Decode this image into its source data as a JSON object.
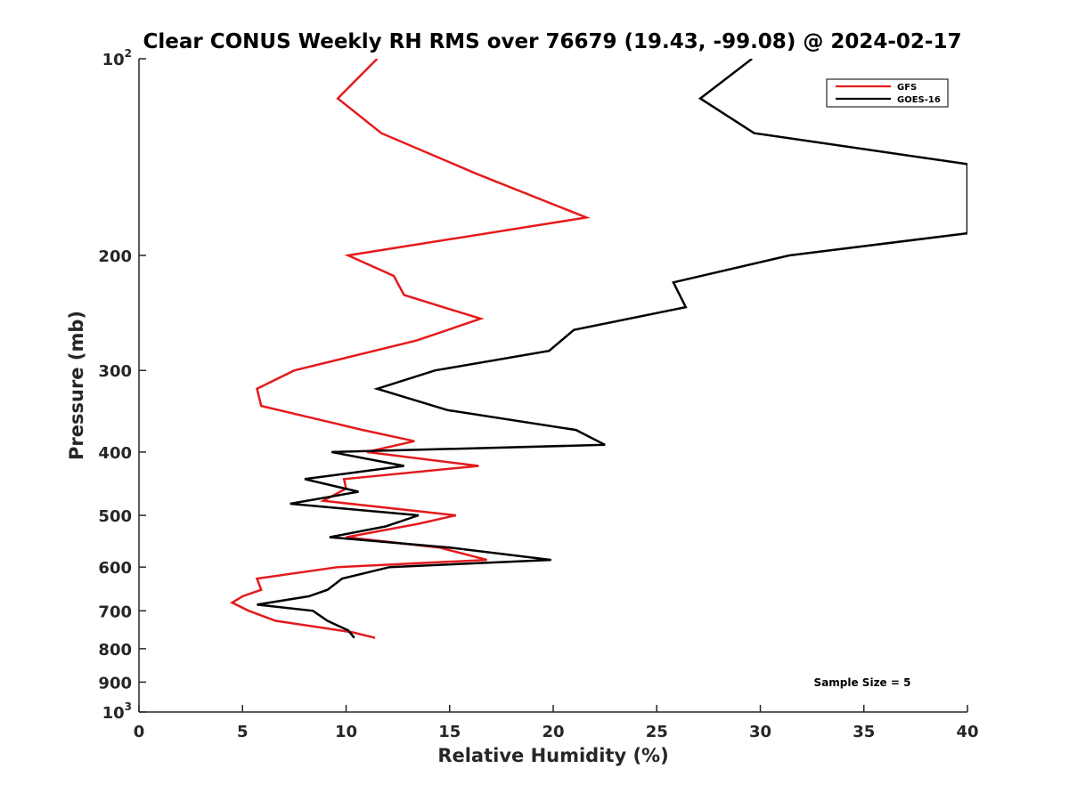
{
  "chart_data": {
    "type": "line",
    "title": "Clear CONUS Weekly RH RMS over 76679 (19.43, -99.08) @ 2024-02-17",
    "xlabel": "Relative Humidity (%)",
    "ylabel": "Pressure (mb)",
    "xlim": [
      0,
      40
    ],
    "ylim": [
      100,
      1000
    ],
    "y_scale": "log",
    "y_reversed": true,
    "grid": false,
    "legend_position": "top-right",
    "x_ticks": [
      0,
      5,
      10,
      15,
      20,
      25,
      30,
      35,
      40
    ],
    "x_tick_labels": [
      "0",
      "5",
      "10",
      "15",
      "20",
      "25",
      "30",
      "35",
      "40"
    ],
    "y_ticks": [
      {
        "value": 100,
        "label": "10",
        "sup": "2"
      },
      {
        "value": 200,
        "label": "200",
        "sup": ""
      },
      {
        "value": 300,
        "label": "300",
        "sup": ""
      },
      {
        "value": 400,
        "label": "400",
        "sup": ""
      },
      {
        "value": 500,
        "label": "500",
        "sup": ""
      },
      {
        "value": 600,
        "label": "600",
        "sup": ""
      },
      {
        "value": 700,
        "label": "700",
        "sup": ""
      },
      {
        "value": 800,
        "label": "800",
        "sup": ""
      },
      {
        "value": 900,
        "label": "900",
        "sup": ""
      },
      {
        "value": 1000,
        "label": "10",
        "sup": "3"
      }
    ],
    "annotation": "Sample Size = 5",
    "series": [
      {
        "name": "GFS",
        "color": "#e41a1c",
        "points": [
          [
            11.5,
            100
          ],
          [
            9.6,
            115
          ],
          [
            11.7,
            130
          ],
          [
            16.3,
            150
          ],
          [
            21.6,
            175
          ],
          [
            10.1,
            200
          ],
          [
            12.3,
            215
          ],
          [
            12.8,
            230
          ],
          [
            16.5,
            250
          ],
          [
            13.4,
            270
          ],
          [
            7.5,
            300
          ],
          [
            5.7,
            320
          ],
          [
            5.9,
            340
          ],
          [
            10.8,
            370
          ],
          [
            13.3,
            385
          ],
          [
            11.0,
            400
          ],
          [
            16.4,
            420
          ],
          [
            9.9,
            440
          ],
          [
            10.0,
            455
          ],
          [
            8.9,
            475
          ],
          [
            15.3,
            500
          ],
          [
            13.5,
            515
          ],
          [
            10.0,
            540
          ],
          [
            14.5,
            560
          ],
          [
            16.8,
            585
          ],
          [
            9.6,
            600
          ],
          [
            5.7,
            625
          ],
          [
            5.9,
            650
          ],
          [
            5.0,
            665
          ],
          [
            4.5,
            680
          ],
          [
            5.3,
            700
          ],
          [
            6.6,
            725
          ],
          [
            10.3,
            755
          ],
          [
            11.4,
            770
          ]
        ]
      },
      {
        "name": "GOES-16",
        "color": "#000000",
        "points": [
          [
            29.6,
            100
          ],
          [
            27.1,
            115
          ],
          [
            29.7,
            130
          ],
          [
            40.0,
            145
          ],
          [
            40.0,
            185
          ],
          [
            31.4,
            200
          ],
          [
            25.8,
            220
          ],
          [
            26.4,
            240
          ],
          [
            21.0,
            260
          ],
          [
            19.8,
            280
          ],
          [
            14.3,
            300
          ],
          [
            11.5,
            320
          ],
          [
            14.9,
            345
          ],
          [
            21.1,
            370
          ],
          [
            22.5,
            390
          ],
          [
            9.3,
            400
          ],
          [
            12.8,
            420
          ],
          [
            8.0,
            440
          ],
          [
            10.6,
            460
          ],
          [
            7.3,
            480
          ],
          [
            13.5,
            500
          ],
          [
            11.9,
            520
          ],
          [
            9.2,
            540
          ],
          [
            15.0,
            560
          ],
          [
            19.9,
            585
          ],
          [
            12.1,
            600
          ],
          [
            9.8,
            625
          ],
          [
            9.1,
            650
          ],
          [
            8.2,
            665
          ],
          [
            5.7,
            685
          ],
          [
            8.4,
            700
          ],
          [
            9.1,
            725
          ],
          [
            10.1,
            750
          ],
          [
            10.4,
            770
          ]
        ]
      }
    ]
  }
}
